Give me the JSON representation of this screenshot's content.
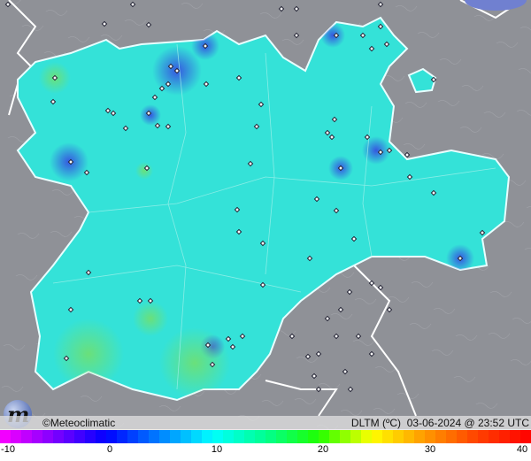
{
  "credit": "©Meteoclimatic",
  "variable": "DLTM (ºC)",
  "timestamp": "03-06-2024 @ 23:52 UTC",
  "colorbar": {
    "min": -10,
    "max": 40,
    "tick_labels": [
      "-10",
      "0",
      "10",
      "20",
      "30",
      "40"
    ],
    "stops": [
      {
        "v": -10,
        "color": "#ff00ff"
      },
      {
        "v": -5,
        "color": "#8000ff"
      },
      {
        "v": 0,
        "color": "#0000ff"
      },
      {
        "v": 5,
        "color": "#0080ff"
      },
      {
        "v": 10,
        "color": "#00ffff"
      },
      {
        "v": 15,
        "color": "#00ff90"
      },
      {
        "v": 20,
        "color": "#20ff00"
      },
      {
        "v": 25,
        "color": "#ffff00"
      },
      {
        "v": 30,
        "color": "#ff9900"
      },
      {
        "v": 35,
        "color": "#ff4000"
      },
      {
        "v": 40,
        "color": "#ff0000"
      }
    ]
  },
  "colors": {
    "background": "#8f9197",
    "region": "#30e0d8",
    "cold_spot": "#3050e0",
    "warm_spot": "#60e080"
  },
  "logo_text": "m"
}
